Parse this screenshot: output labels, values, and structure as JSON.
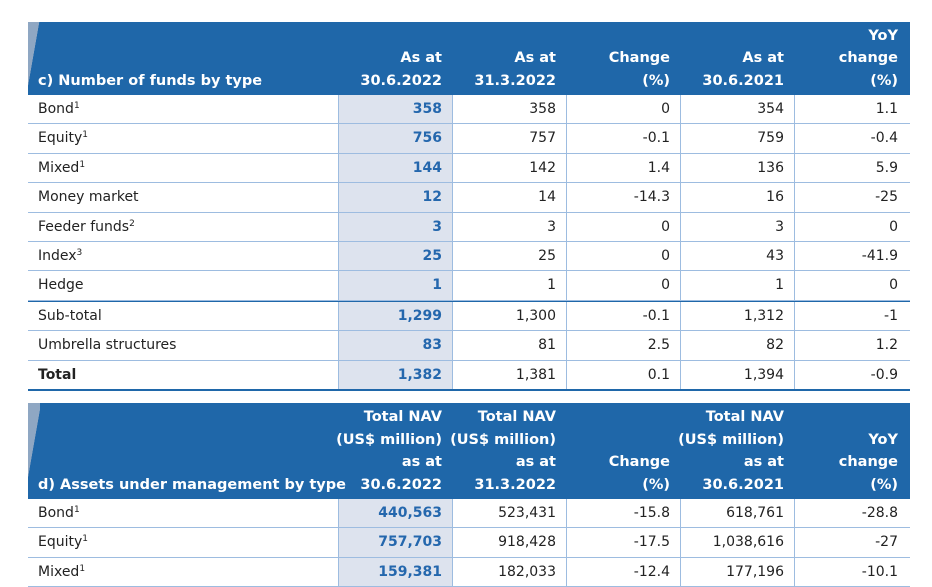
{
  "table_c": {
    "title": "c) Number of funds by type",
    "headers": [
      "As at\n30.6.2022",
      "As at\n31.3.2022",
      "Change\n(%)",
      "As at\n30.6.2021",
      "YoY\nchange\n(%)"
    ],
    "rows": [
      {
        "label": "Bond",
        "sup": "1",
        "values": [
          "358",
          "358",
          "0",
          "354",
          "1.1"
        ]
      },
      {
        "label": "Equity",
        "sup": "1",
        "values": [
          "756",
          "757",
          "-0.1",
          "759",
          "-0.4"
        ]
      },
      {
        "label": "Mixed",
        "sup": "1",
        "values": [
          "144",
          "142",
          "1.4",
          "136",
          "5.9"
        ]
      },
      {
        "label": "Money market",
        "sup": "",
        "values": [
          "12",
          "14",
          "-14.3",
          "16",
          "-25"
        ]
      },
      {
        "label": "Feeder funds",
        "sup": "2",
        "values": [
          "3",
          "3",
          "0",
          "3",
          "0"
        ]
      },
      {
        "label": "Index",
        "sup": "3",
        "values": [
          "25",
          "25",
          "0",
          "43",
          "-41.9"
        ]
      },
      {
        "label": "Hedge",
        "sup": "",
        "values": [
          "1",
          "1",
          "0",
          "1",
          "0"
        ]
      },
      {
        "label": "Sub-total",
        "sup": "",
        "values": [
          "1,299",
          "1,300",
          "-0.1",
          "1,312",
          "-1"
        ]
      },
      {
        "label": "Umbrella structures",
        "sup": "",
        "values": [
          "83",
          "81",
          "2.5",
          "82",
          "1.2"
        ]
      },
      {
        "label": "Total",
        "sup": "",
        "values": [
          "1,382",
          "1,381",
          "0.1",
          "1,394",
          "-0.9"
        ]
      }
    ]
  },
  "table_d": {
    "title": "d) Assets under management by type",
    "headers": [
      "Total NAV\n(US$ million)\nas at\n30.6.2022",
      "Total NAV\n(US$ million)\nas at\n31.3.2022",
      "Change\n(%)",
      "Total NAV\n(US$ million)\nas at\n30.6.2021",
      "YoY\nchange\n(%)"
    ],
    "rows": [
      {
        "label": "Bond",
        "sup": "1",
        "values": [
          "440,563",
          "523,431",
          "-15.8",
          "618,761",
          "-28.8"
        ]
      },
      {
        "label": "Equity",
        "sup": "1",
        "values": [
          "757,703",
          "918,428",
          "-17.5",
          "1,038,616",
          "-27"
        ]
      },
      {
        "label": "Mixed",
        "sup": "1",
        "values": [
          "159,381",
          "182,033",
          "-12.4",
          "177,196",
          "-10.1"
        ]
      }
    ]
  },
  "colors": {
    "header_bg": "#1f67a9",
    "shade": "#dde3ee",
    "accent_text": "#2467ad"
  }
}
